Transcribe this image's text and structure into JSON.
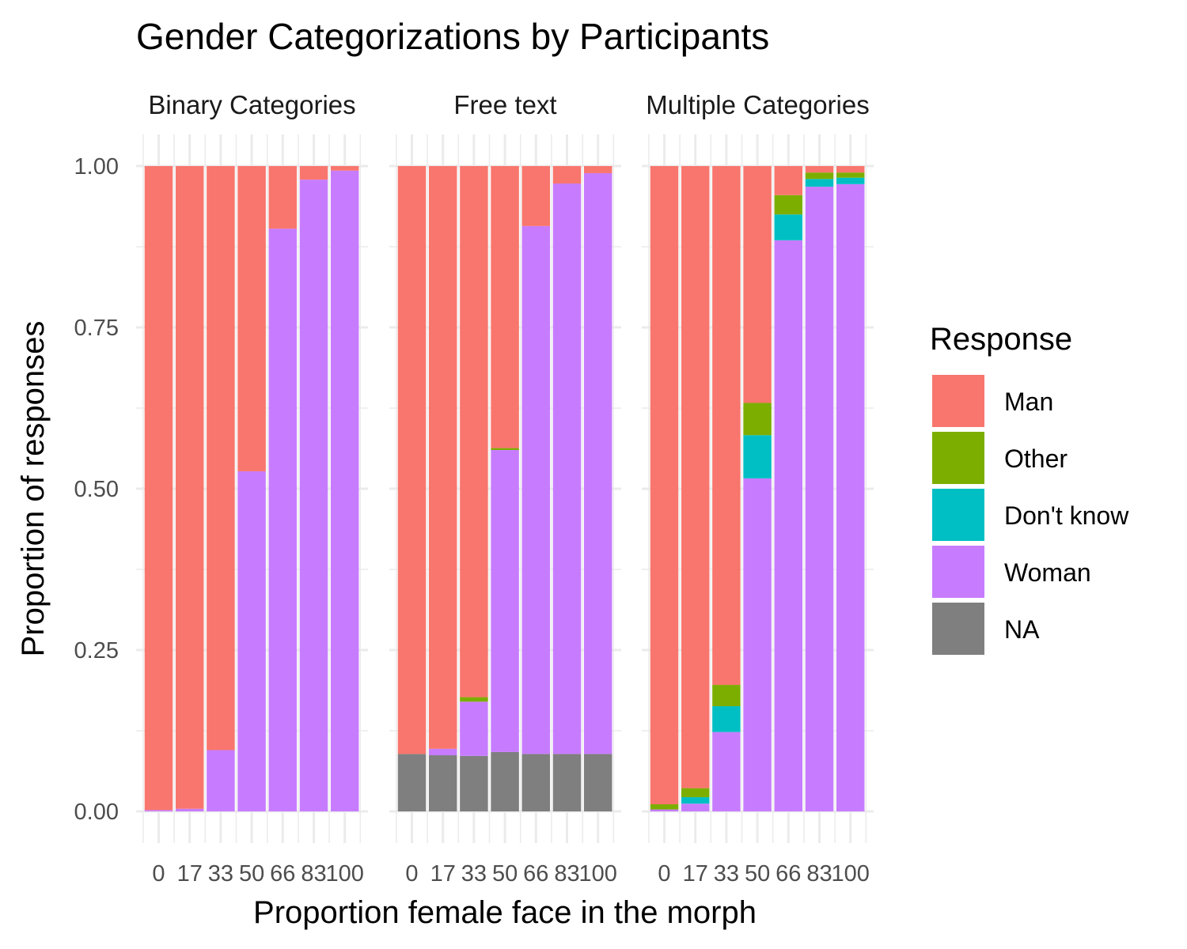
{
  "chart_data": {
    "type": "bar",
    "stacked": true,
    "title": "Gender Categorizations by Participants",
    "xlabel": "Proportion female face in the morph",
    "ylabel": "Proportion of responses",
    "ylim": [
      0,
      1
    ],
    "y_ticks": [
      "0.00",
      "0.25",
      "0.50",
      "0.75",
      "1.00"
    ],
    "y_tick_values": [
      0,
      0.25,
      0.5,
      0.75,
      1.0
    ],
    "categories": [
      "0",
      "17",
      "33",
      "50",
      "66",
      "83",
      "100"
    ],
    "grid": true,
    "legend": {
      "title": "Response",
      "position": "right",
      "entries": [
        "Man",
        "Other",
        "Don't know",
        "Woman",
        "NA"
      ]
    },
    "colors": {
      "Man": "#F8766D",
      "Other": "#7CAE00",
      "Don't know": "#00BFC4",
      "Woman": "#C77CFF",
      "NA": "#7F7F7F"
    },
    "stack_order_bottom_to_top": [
      "NA",
      "Woman",
      "Don't know",
      "Other",
      "Man"
    ],
    "panels": [
      {
        "name": "Binary Categories",
        "series": [
          {
            "name": "NA",
            "values": [
              0,
              0,
              0,
              0,
              0,
              0,
              0
            ]
          },
          {
            "name": "Woman",
            "values": [
              0.002,
              0.004,
              0.095,
              0.527,
              0.903,
              0.979,
              0.993
            ]
          },
          {
            "name": "Don't know",
            "values": [
              0,
              0,
              0,
              0,
              0,
              0,
              0
            ]
          },
          {
            "name": "Other",
            "values": [
              0,
              0,
              0,
              0,
              0,
              0,
              0
            ]
          },
          {
            "name": "Man",
            "values": [
              0.998,
              0.996,
              0.905,
              0.473,
              0.097,
              0.021,
              0.007
            ]
          }
        ]
      },
      {
        "name": "Free text",
        "series": [
          {
            "name": "NA",
            "values": [
              0.089,
              0.087,
              0.086,
              0.092,
              0.089,
              0.089,
              0.089
            ]
          },
          {
            "name": "Woman",
            "values": [
              0,
              0.01,
              0.084,
              0.468,
              0.818,
              0.884,
              0.9
            ]
          },
          {
            "name": "Don't know",
            "values": [
              0,
              0,
              0,
              0,
              0,
              0,
              0
            ]
          },
          {
            "name": "Other",
            "values": [
              0,
              0,
              0.007,
              0.003,
              0,
              0,
              0
            ]
          },
          {
            "name": "Man",
            "values": [
              0.911,
              0.903,
              0.823,
              0.437,
              0.093,
              0.027,
              0.011
            ]
          }
        ]
      },
      {
        "name": "Multiple Categories",
        "series": [
          {
            "name": "NA",
            "values": [
              0,
              0,
              0,
              0,
              0,
              0,
              0
            ]
          },
          {
            "name": "Woman",
            "values": [
              0.003,
              0.012,
              0.123,
              0.516,
              0.885,
              0.968,
              0.972
            ]
          },
          {
            "name": "Don't know",
            "values": [
              0,
              0.01,
              0.04,
              0.067,
              0.04,
              0.012,
              0.01
            ]
          },
          {
            "name": "Other",
            "values": [
              0.008,
              0.014,
              0.033,
              0.05,
              0.03,
              0.01,
              0.008
            ]
          },
          {
            "name": "Man",
            "values": [
              0.989,
              0.964,
              0.804,
              0.367,
              0.045,
              0.01,
              0.01
            ]
          }
        ]
      }
    ]
  }
}
